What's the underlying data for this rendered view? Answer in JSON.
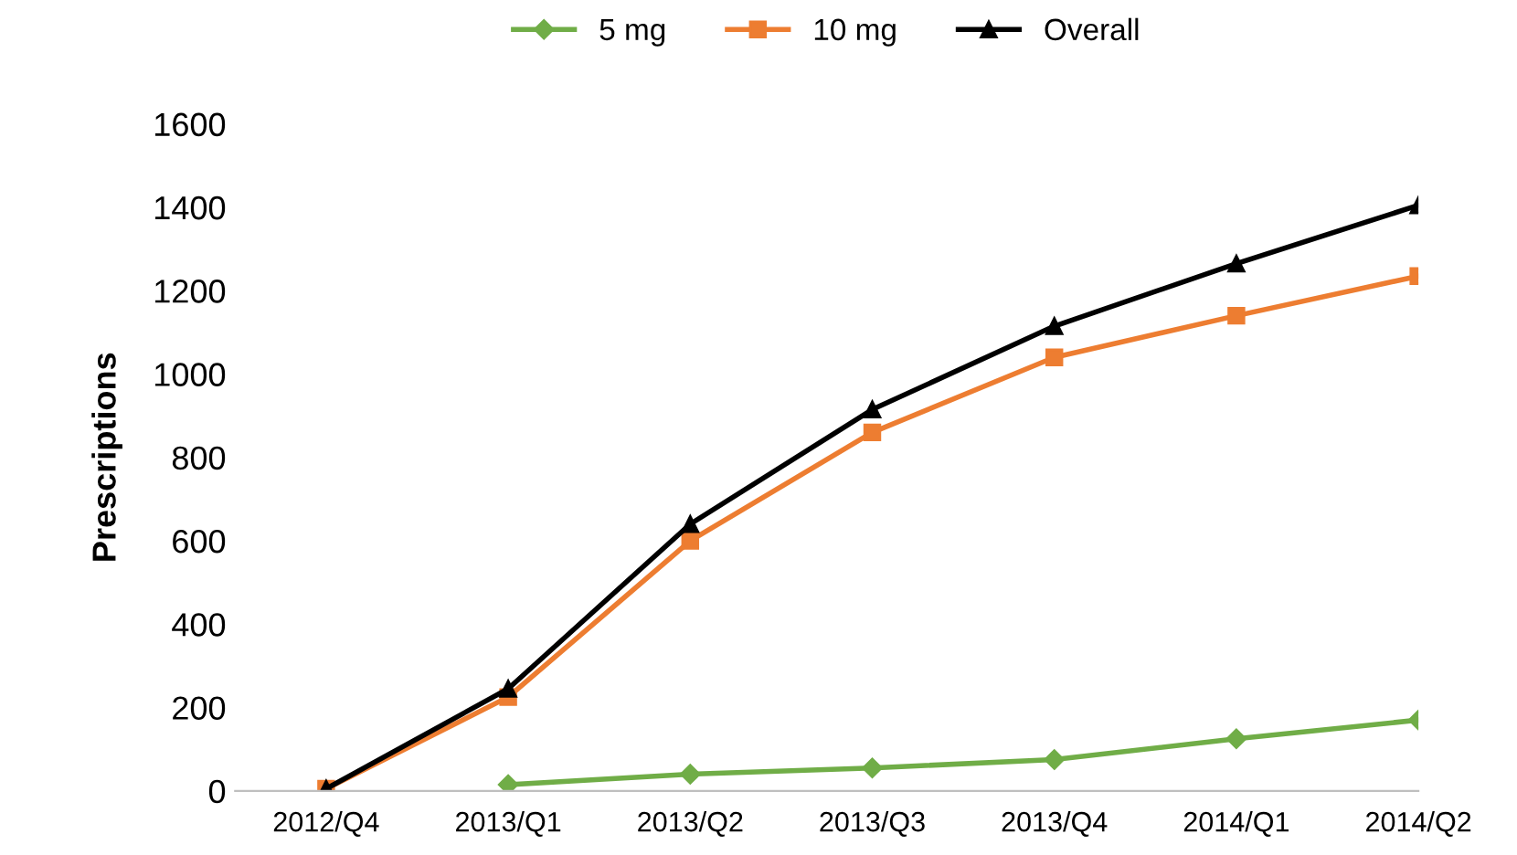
{
  "chart_data": {
    "type": "line",
    "ylabel": "Prescriptions",
    "categories": [
      "2012/Q4",
      "2013/Q1",
      "2013/Q2",
      "2013/Q3",
      "2013/Q4",
      "2014/Q1",
      "2014/Q2"
    ],
    "series": [
      {
        "name": "5 mg",
        "color": "#70ad47",
        "marker": "diamond",
        "values": [
          null,
          15,
          40,
          55,
          75,
          125,
          170
        ]
      },
      {
        "name": "10 mg",
        "color": "#ed7d31",
        "marker": "square",
        "values": [
          5,
          225,
          600,
          860,
          1040,
          1140,
          1235
        ]
      },
      {
        "name": "Overall",
        "color": "#000000",
        "marker": "triangle",
        "values": [
          5,
          245,
          640,
          915,
          1115,
          1265,
          1405
        ]
      }
    ],
    "ylim": [
      0,
      1600
    ],
    "yticks": [
      0,
      200,
      400,
      600,
      800,
      1000,
      1200,
      1400,
      1600
    ],
    "grid": false,
    "legend": "top",
    "line_style": "solid"
  }
}
